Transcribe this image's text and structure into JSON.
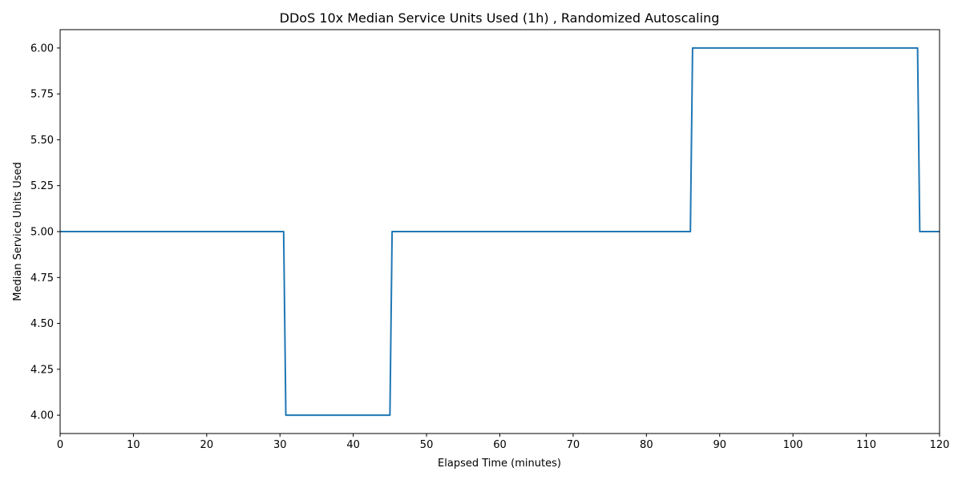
{
  "chart_data": {
    "type": "line",
    "title": "DDoS 10x Median Service Units Used (1h) , Randomized Autoscaling",
    "xlabel": "Elapsed Time (minutes)",
    "ylabel": "Median Service Units Used",
    "xlim": [
      0,
      120
    ],
    "ylim": [
      3.9,
      6.1
    ],
    "x_ticks": [
      0,
      10,
      20,
      30,
      40,
      50,
      60,
      70,
      80,
      90,
      100,
      110,
      120
    ],
    "y_ticks": [
      4.0,
      4.25,
      4.5,
      4.75,
      5.0,
      5.25,
      5.5,
      5.75,
      6.0
    ],
    "grid": false,
    "legend": "none",
    "series": [
      {
        "color": "#1f77b4",
        "x": [
          0,
          30.5,
          30.8,
          45.0,
          45.3,
          86.0,
          86.3,
          117.0,
          117.3,
          120
        ],
        "y": [
          5.0,
          5.0,
          4.0,
          4.0,
          5.0,
          5.0,
          6.0,
          6.0,
          5.0,
          5.0
        ]
      }
    ]
  }
}
